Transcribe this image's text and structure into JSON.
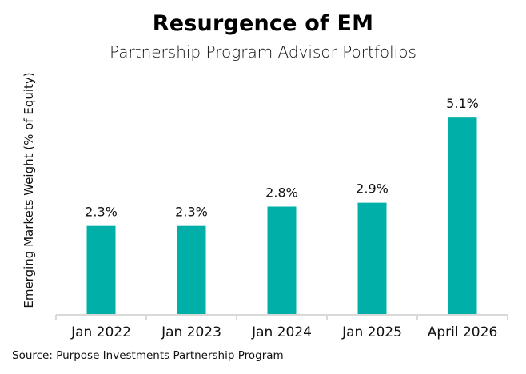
{
  "chart_data": {
    "type": "bar",
    "title": "Resurgence of EM",
    "subtitle": "Partnership Program Advisor Portfolios",
    "xlabel": "",
    "ylabel": "Emerging Markets Weight (% of Equity)",
    "categories": [
      "Jan 2022",
      "Jan 2023",
      "Jan 2024",
      "Jan 2025",
      "April 2026"
    ],
    "values": [
      2.3,
      2.3,
      2.8,
      2.9,
      5.1
    ],
    "data_labels": [
      "2.3%",
      "2.3%",
      "2.8%",
      "2.9%",
      "5.1%"
    ],
    "ylim": [
      0,
      5.1
    ],
    "grid": false,
    "legend": "none",
    "bar_color": "#00B0A8",
    "source": "Source: Purpose Investments Partnership Program"
  }
}
